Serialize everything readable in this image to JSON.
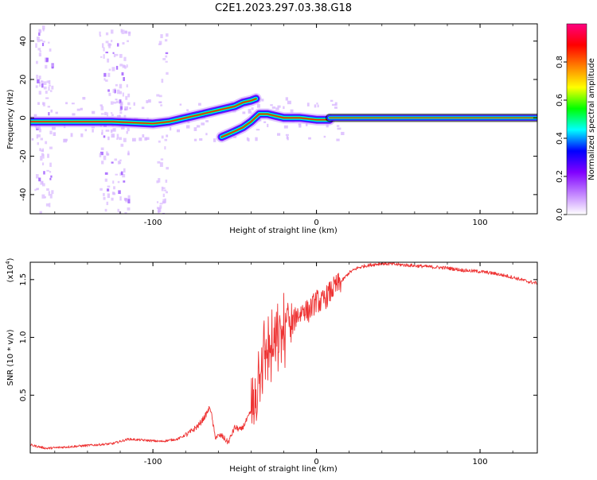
{
  "figure_title": "C2E1.2023.297.03.38.G18",
  "chart_data": [
    {
      "type": "heatmap",
      "xlabel": "Height of straight line (km)",
      "ylabel": "Frequency (Hz)",
      "xlim": [
        -175,
        135
      ],
      "ylim": [
        -50,
        49
      ],
      "xticks": [
        -100,
        0,
        100
      ],
      "yticks": [
        -40,
        -20,
        0,
        20,
        40
      ],
      "colorbar": {
        "label": "Normalized spectral amplitude",
        "range": [
          0,
          1
        ],
        "ticks": [
          "0.0",
          "0.2",
          "0.4",
          "0.6",
          "0.8"
        ],
        "colors": [
          "#ffffff",
          "#c080ff",
          "#8000ff",
          "#0000ff",
          "#00ffff",
          "#00ff00",
          "#ffff00",
          "#ff8000",
          "#ff0000",
          "#ff0080"
        ]
      },
      "traces": [
        {
          "x": [
            -175,
            -150,
            -125,
            -100,
            -90,
            -80,
            -70,
            -60,
            -50,
            -45,
            -40,
            -37
          ],
          "y": [
            -2,
            -2,
            -2,
            -3,
            -2,
            0,
            2,
            4,
            6,
            8,
            9,
            10
          ]
        },
        {
          "x": [
            -58,
            -50,
            -45,
            -40,
            -35,
            -30,
            -25,
            -20,
            -10,
            0,
            8
          ],
          "y": [
            -10,
            -7,
            -5,
            -2,
            2,
            2,
            1,
            0,
            0,
            -1,
            -1
          ]
        },
        {
          "x": [
            8,
            40,
            80,
            120,
            135
          ],
          "y": [
            0,
            0,
            0,
            0,
            0
          ]
        }
      ],
      "noise_columns_x": [
        -170,
        -165,
        -130,
        -123,
        -118,
        -95
      ]
    },
    {
      "type": "line",
      "xlabel": "Height of straight line (km)",
      "ylabel": "SNR (10 * v/v)",
      "y_multiplier": "(x10",
      "y_multiplier_exp": "4",
      "y_multiplier_close": ")",
      "xlim": [
        -175,
        135
      ],
      "ylim": [
        0,
        1.65
      ],
      "xticks": [
        -100,
        0,
        100
      ],
      "yticks": [
        "0.5",
        "1.0",
        "1.5"
      ],
      "color": "#ee3333",
      "series": [
        {
          "x": [
            -175,
            -165,
            -155,
            -145,
            -135,
            -125,
            -115,
            -105,
            -95,
            -85,
            -78,
            -72,
            -68,
            -65,
            -62,
            -58,
            -54,
            -50,
            -46,
            -42,
            -38,
            -35,
            -32,
            -30,
            -28,
            -25,
            -22,
            -20,
            -18,
            -15,
            -12,
            -10,
            -8,
            -5,
            -2,
            0,
            3,
            6,
            10,
            15,
            20,
            25,
            30,
            35,
            40,
            50,
            60,
            70,
            80,
            90,
            100,
            110,
            120,
            130,
            135
          ],
          "y": [
            0.07,
            0.04,
            0.05,
            0.06,
            0.07,
            0.08,
            0.12,
            0.11,
            0.1,
            0.12,
            0.17,
            0.24,
            0.32,
            0.4,
            0.14,
            0.15,
            0.09,
            0.22,
            0.2,
            0.3,
            0.42,
            0.72,
            0.85,
            0.93,
            0.9,
            0.88,
            1.05,
            1.05,
            1.15,
            1.1,
            1.2,
            1.2,
            1.25,
            1.22,
            1.28,
            1.32,
            1.3,
            1.35,
            1.42,
            1.48,
            1.56,
            1.6,
            1.62,
            1.63,
            1.64,
            1.63,
            1.62,
            1.61,
            1.6,
            1.58,
            1.57,
            1.55,
            1.52,
            1.48,
            1.47
          ]
        }
      ]
    }
  ]
}
